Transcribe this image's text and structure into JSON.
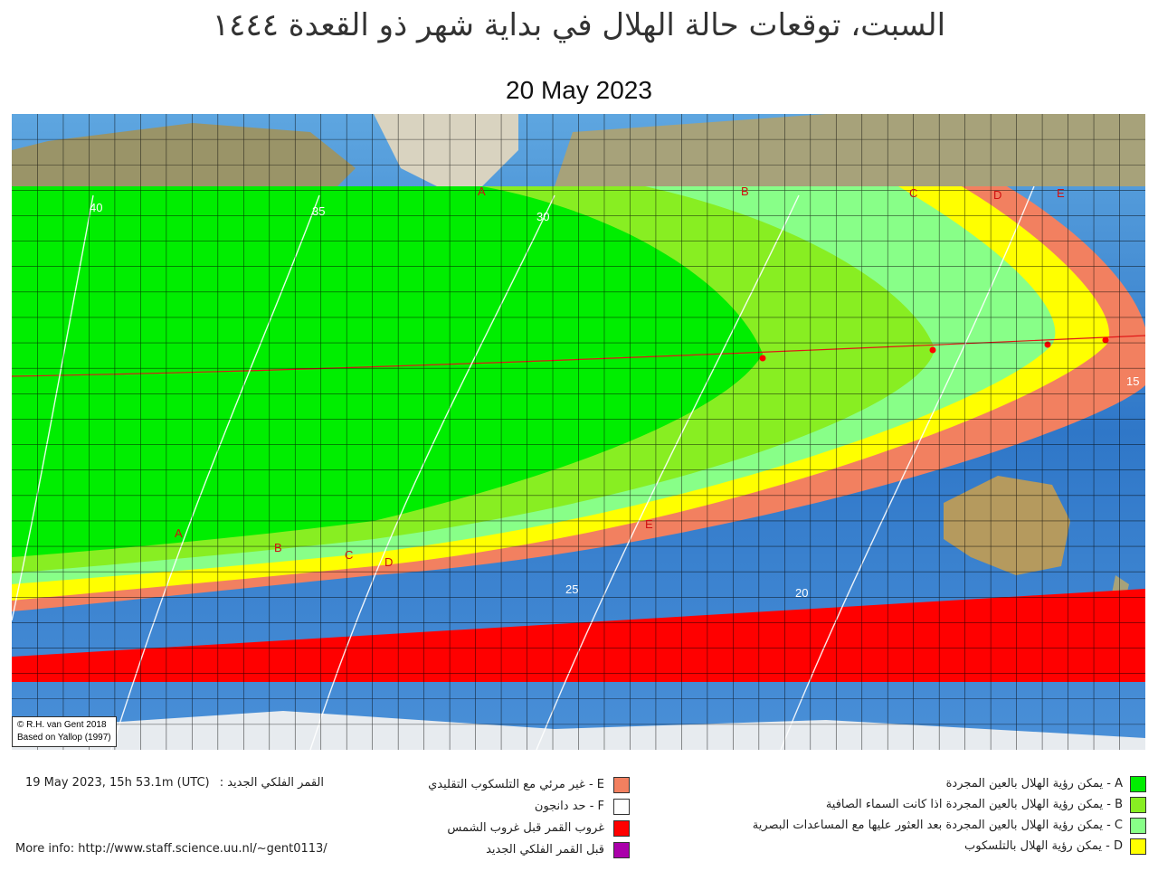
{
  "header": {
    "title": "السبت، توقعات حالة الهلال في بداية شهر ذو القعدة ١٤٤٤",
    "date": "20 May 2023"
  },
  "map": {
    "copyright_line1": "© R.H. van Gent 2018",
    "copyright_line2": "Based on Yallop (1997)",
    "zone_labels": [
      "A",
      "B",
      "C",
      "D",
      "E"
    ],
    "contour_labels": [
      "40",
      "35",
      "30",
      "25",
      "20",
      "15"
    ],
    "colors": {
      "A": "#00ee00",
      "B": "#88ee22",
      "C": "#88ff88",
      "D": "#ffff00",
      "E": "#f28060",
      "red": "#ff0000",
      "grid": "#000000",
      "ocean": "#3b7fd0",
      "land": "#a7a27a"
    }
  },
  "legend": {
    "right": [
      {
        "key": "A",
        "label": "A - يمكن رؤية الهلال بالعين المجردة",
        "color": "#00ee00"
      },
      {
        "key": "B",
        "label": "B - يمكن رؤية الهلال بالعين المجردة اذا كانت السماء الصافية",
        "color": "#88ee22"
      },
      {
        "key": "C",
        "label": "C - يمكن رؤية الهلال بالعين المجردة بعد العثور عليها مع المساعدات البصرية",
        "color": "#88ff88"
      },
      {
        "key": "D",
        "label": "D - يمكن رؤية الهلال بالتلسكوب",
        "color": "#ffff00"
      }
    ],
    "middle": [
      {
        "key": "E",
        "label": "E - غير مرئي مع التلسكوب التقليدي",
        "color": "#f28060"
      },
      {
        "key": "F",
        "label": "F - حد دانجون",
        "color": "#ffffff"
      },
      {
        "key": "moonset",
        "label": "غروب القمر قبل غروب الشمس",
        "color": "#ff0000"
      },
      {
        "key": "newmoon",
        "label": "قبل القمر  الفلكي الجديد",
        "color": "#aa00aa"
      }
    ]
  },
  "info": {
    "new_moon_label": "القمر الفلكي الجديد :",
    "new_moon_time": "19 May 2023, 15h 53.1m (UTC)",
    "more_info": "More info: http://www.staff.science.uu.nl/~gent0113/"
  }
}
